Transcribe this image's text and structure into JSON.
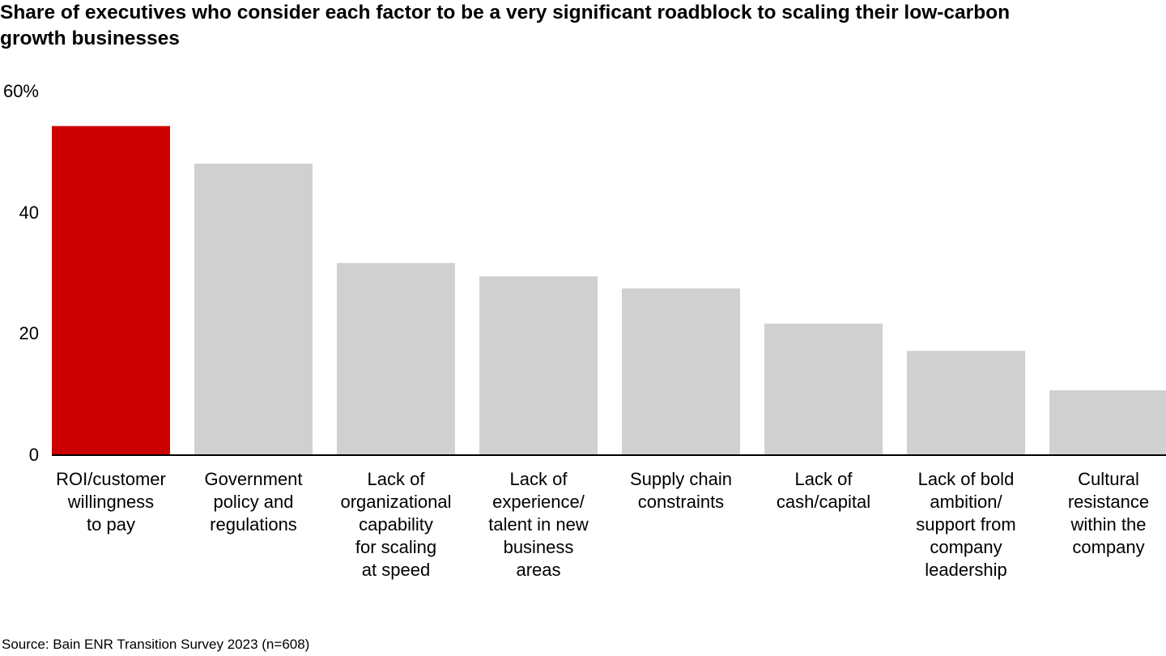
{
  "chart_data": {
    "type": "bar",
    "title": "Share of executives who consider each factor to be a very significant roadblock to scaling their low-carbon growth businesses",
    "categories": [
      "ROI/customer\nwillingness\nto pay",
      "Government\npolicy and\nregulations",
      "Lack of\norganizational\ncapability\nfor scaling\nat speed",
      "Lack of\nexperience/\ntalent in new\nbusiness\nareas",
      "Supply chain\nconstraints",
      "Lack of\ncash/capital",
      "Lack of bold\nambition/\nsupport from\ncompany\nleadership",
      "Cultural\nresistance\nwithin the\ncompany"
    ],
    "values": [
      54.3,
      48.1,
      31.7,
      29.5,
      27.5,
      21.7,
      17.2,
      10.7
    ],
    "colors": [
      "#cc0000",
      "#d0d0d0",
      "#d0d0d0",
      "#d0d0d0",
      "#d0d0d0",
      "#d0d0d0",
      "#d0d0d0",
      "#d0d0d0"
    ],
    "ylim": [
      0,
      60
    ],
    "yticks": [
      0,
      20,
      40,
      {
        "value": 60,
        "label": "60%"
      }
    ],
    "grid": false,
    "source": "Source: Bain ENR Transition Survey 2023 (n=608)"
  }
}
